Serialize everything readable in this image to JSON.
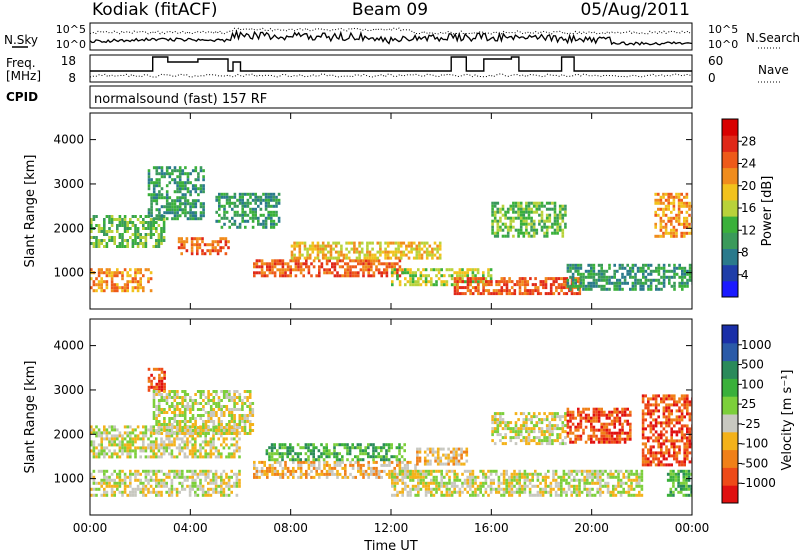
{
  "header": {
    "station": "Kodiak (fitACF)",
    "beam": "Beam 09",
    "date": "05/Aug/2011"
  },
  "noise_panel": {
    "left_label": "N.Sky",
    "right_label": "N.Search",
    "left_ticks": [
      "10^5",
      "10^0"
    ],
    "right_ticks": [
      "10^5",
      "10^0"
    ]
  },
  "freq_panel": {
    "left_label_line1": "Freq.",
    "left_label_line2": "[MHz]",
    "right_label": "Nave",
    "left_ticks": [
      "18",
      "8"
    ],
    "right_ticks": [
      "60",
      "0"
    ]
  },
  "cpid": {
    "label": "CPID",
    "text": "normalsound (fast) 157 RF"
  },
  "chart_data": [
    {
      "type": "heatmap",
      "title": "",
      "xlabel": "",
      "ylabel": "Slant Range [km]",
      "x_ticks": [
        "00:00",
        "04:00",
        "08:00",
        "12:00",
        "16:00",
        "20:00",
        "00:00"
      ],
      "y_ticks": [
        1000,
        2000,
        3000,
        4000
      ],
      "xlim": [
        0,
        24
      ],
      "ylim": [
        180,
        4600
      ],
      "colorbar_label": "Power [dB]",
      "colorbar_ticks": [
        4,
        8,
        12,
        16,
        20,
        24,
        28
      ],
      "colorbar_range": [
        0,
        32
      ],
      "colors": [
        "#1a1aff",
        "#1f3ea8",
        "#2a7a8c",
        "#3a9a5a",
        "#3ab03a",
        "#b8d23a",
        "#f2c21c",
        "#f08c1c",
        "#ee5a1a",
        "#e02818",
        "#d80000"
      ],
      "regions": [
        {
          "t0": 0.0,
          "t1": 2.4,
          "r0": 600,
          "r1": 1100,
          "value": 22
        },
        {
          "t0": 0.0,
          "t1": 3.0,
          "r0": 1600,
          "r1": 2300,
          "value": 12
        },
        {
          "t0": 2.3,
          "t1": 4.5,
          "r0": 2200,
          "r1": 3400,
          "value": 8
        },
        {
          "t0": 3.5,
          "t1": 5.5,
          "r0": 1400,
          "r1": 1800,
          "value": 24
        },
        {
          "t0": 5.0,
          "t1": 7.5,
          "r0": 2000,
          "r1": 2800,
          "value": 10
        },
        {
          "t0": 6.5,
          "t1": 12.5,
          "r0": 900,
          "r1": 1300,
          "value": 26
        },
        {
          "t0": 8.0,
          "t1": 14.0,
          "r0": 1300,
          "r1": 1700,
          "value": 18
        },
        {
          "t0": 12.0,
          "t1": 16.0,
          "r0": 700,
          "r1": 1100,
          "value": 16
        },
        {
          "t0": 14.5,
          "t1": 19.5,
          "r0": 500,
          "r1": 900,
          "value": 24
        },
        {
          "t0": 16.0,
          "t1": 19.0,
          "r0": 1800,
          "r1": 2600,
          "value": 12
        },
        {
          "t0": 19.0,
          "t1": 24.0,
          "r0": 600,
          "r1": 1200,
          "value": 8
        },
        {
          "t0": 22.5,
          "t1": 24.0,
          "r0": 1800,
          "r1": 2800,
          "value": 22
        }
      ]
    },
    {
      "type": "heatmap",
      "title": "",
      "xlabel": "Time UT",
      "ylabel": "Slant Range [km]",
      "x_ticks": [
        "00:00",
        "04:00",
        "08:00",
        "12:00",
        "16:00",
        "20:00",
        "00:00"
      ],
      "y_ticks": [
        1000,
        2000,
        3000,
        4000
      ],
      "xlim": [
        0,
        24
      ],
      "ylim": [
        180,
        4600
      ],
      "colorbar_label": "Velocity [m s⁻¹]",
      "colorbar_ticks": [
        "1000",
        "500",
        "100",
        "25",
        "-25",
        "-100",
        "-500",
        "-1000"
      ],
      "colors": [
        "#1a2fa8",
        "#2a5aa8",
        "#2a8a5a",
        "#3ab03a",
        "#7ccf3a",
        "#c8c8c0",
        "#f4b21a",
        "#f08018",
        "#ee4a18",
        "#e01010"
      ],
      "regions": [
        {
          "t0": 0.0,
          "t1": 6.0,
          "r0": 600,
          "r1": 1200,
          "value": 0
        },
        {
          "t0": 0.0,
          "t1": 6.0,
          "r0": 1500,
          "r1": 2200,
          "value": 0
        },
        {
          "t0": 2.3,
          "t1": 3.0,
          "r0": 3000,
          "r1": 3500,
          "value": -500
        },
        {
          "t0": 2.5,
          "t1": 6.5,
          "r0": 2000,
          "r1": 3000,
          "value": 0
        },
        {
          "t0": 6.5,
          "t1": 13.0,
          "r0": 1000,
          "r1": 1400,
          "value": -100
        },
        {
          "t0": 7.0,
          "t1": 12.5,
          "r0": 1400,
          "r1": 1800,
          "value": 100
        },
        {
          "t0": 12.0,
          "t1": 22.0,
          "r0": 600,
          "r1": 1200,
          "value": 0
        },
        {
          "t0": 13.0,
          "t1": 15.0,
          "r0": 1300,
          "r1": 1700,
          "value": -100
        },
        {
          "t0": 16.0,
          "t1": 19.0,
          "r0": 1800,
          "r1": 2500,
          "value": 0
        },
        {
          "t0": 19.0,
          "t1": 21.5,
          "r0": 1800,
          "r1": 2600,
          "value": -500
        },
        {
          "t0": 22.0,
          "t1": 24.0,
          "r0": 1300,
          "r1": 2900,
          "value": -500
        },
        {
          "t0": 23.0,
          "t1": 24.0,
          "r0": 600,
          "r1": 1200,
          "value": 100
        }
      ]
    }
  ]
}
